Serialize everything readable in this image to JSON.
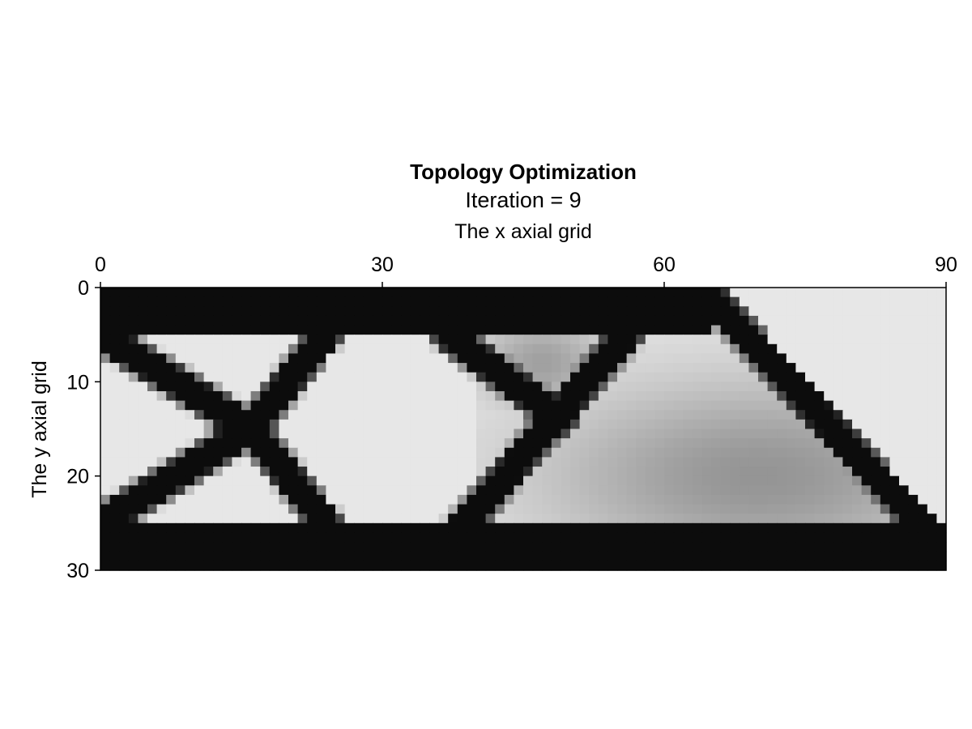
{
  "chart_data": {
    "type": "heatmap",
    "title": "Topology Optimization",
    "subtitle": "Iteration = 9",
    "xlabel": "The x axial grid",
    "ylabel": "The y axial grid",
    "xlim": [
      0,
      90
    ],
    "ylim": [
      0,
      30
    ],
    "x_ticks": [
      "0",
      "30",
      "60",
      "90"
    ],
    "y_ticks": [
      "0",
      "10",
      "20",
      "30"
    ],
    "x_axis_position": "top",
    "y_axis_inverted": true,
    "colormap": "grayscale (1 = black solid, 0 = white void)",
    "grid": false,
    "resolution": [
      90,
      30
    ],
    "structure_features": {
      "top_chord": {
        "x": [
          0,
          64
        ],
        "y": [
          0,
          4.5
        ],
        "density": 1.0
      },
      "bottom_chord": {
        "x": [
          0,
          90
        ],
        "y": [
          25.5,
          30
        ],
        "density": 1.0
      },
      "diagonal_bars": [
        {
          "from": [
            0,
            5
          ],
          "to": [
            16,
            15
          ],
          "density": 1.0
        },
        {
          "from": [
            0,
            25
          ],
          "to": [
            16,
            15
          ],
          "density": 1.0
        },
        {
          "from": [
            24,
            5
          ],
          "to": [
            16,
            15
          ],
          "density": 1.0
        },
        {
          "from": [
            24,
            25
          ],
          "to": [
            16,
            15
          ],
          "density": 1.0
        },
        {
          "from": [
            37,
            5
          ],
          "to": [
            49,
            14
          ],
          "density": 1.0
        },
        {
          "from": [
            56,
            5
          ],
          "to": [
            38,
            26
          ],
          "density": 1.0
        },
        {
          "from": [
            64,
            0
          ],
          "to": [
            90,
            28
          ],
          "density": 1.0
        }
      ],
      "voids": [
        {
          "center": [
            29,
            15
          ],
          "radii": [
            7.5,
            9.5
          ],
          "density": 0.0
        },
        {
          "center": [
            7,
            15
          ],
          "description": "left triangular void",
          "density": 0.0
        },
        {
          "center": [
            84,
            6
          ],
          "description": "top-right corner void",
          "density": 0.0
        }
      ],
      "gray_regions": [
        {
          "center": [
            70,
            20
          ],
          "description": "intermediate density region",
          "density": 0.35
        },
        {
          "center": [
            47,
            8
          ],
          "description": "intermediate density region",
          "density": 0.3
        }
      ]
    }
  }
}
